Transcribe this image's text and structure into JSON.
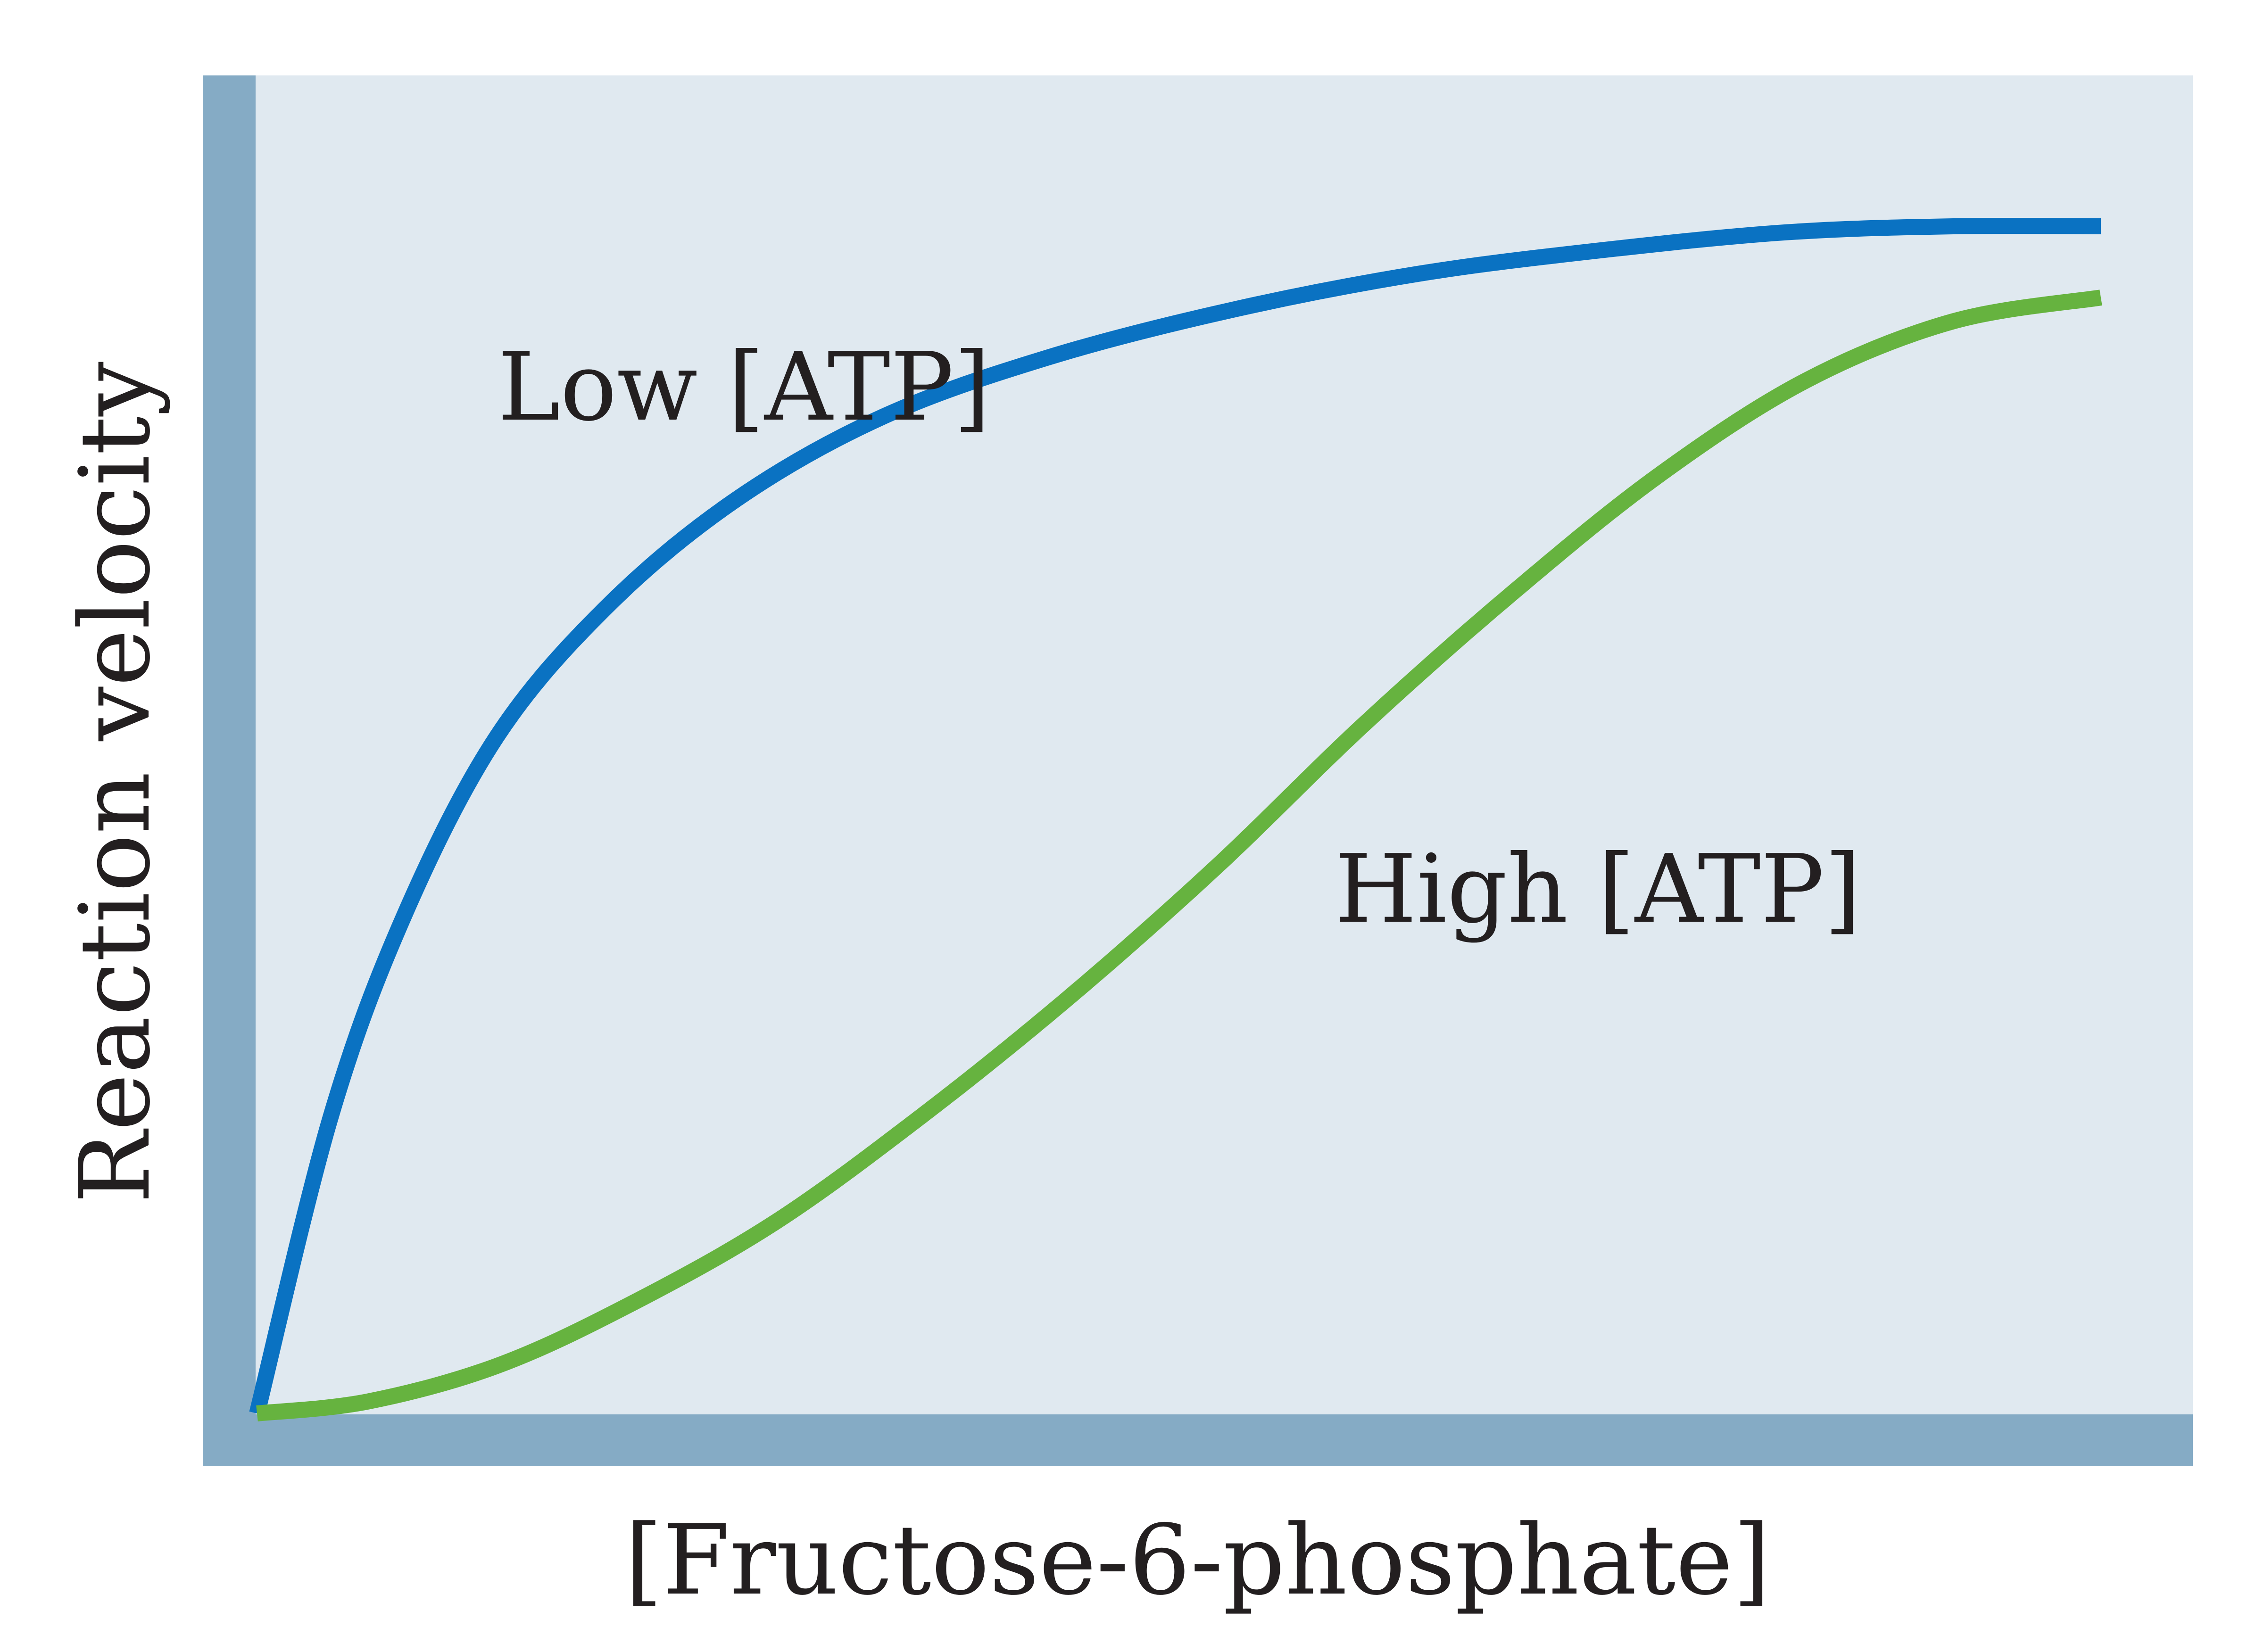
{
  "colors": {
    "plot_background": "#e0e9f0",
    "axis_bar": "#85abc5",
    "low_atp_curve": "#0a72c2",
    "high_atp_curve": "#66b33f",
    "text": "#231f20"
  },
  "chart_data": {
    "type": "line",
    "title": "",
    "xlabel": "[Fructose-6-phosphate]",
    "ylabel": "Reaction velocity",
    "xlim": [
      0,
      1
    ],
    "ylim": [
      0,
      1
    ],
    "grid": false,
    "axis_ticks": false,
    "series": [
      {
        "name": "Low [ATP]",
        "x": [
          0,
          0.04,
          0.08,
          0.13,
          0.19,
          0.26,
          0.34,
          0.43,
          0.53,
          0.63,
          0.73,
          0.83,
          0.92,
          1.0
        ],
        "y": [
          0,
          0.25,
          0.42,
          0.57,
          0.68,
          0.77,
          0.84,
          0.89,
          0.93,
          0.96,
          0.98,
          0.995,
          1.0,
          1.0
        ]
      },
      {
        "name": "High [ATP]",
        "x": [
          0,
          0.06,
          0.13,
          0.2,
          0.28,
          0.36,
          0.44,
          0.52,
          0.6,
          0.68,
          0.76,
          0.84,
          0.92,
          1.0
        ],
        "y": [
          0,
          0.01,
          0.04,
          0.09,
          0.16,
          0.25,
          0.35,
          0.46,
          0.58,
          0.69,
          0.79,
          0.87,
          0.92,
          0.94
        ]
      }
    ]
  }
}
